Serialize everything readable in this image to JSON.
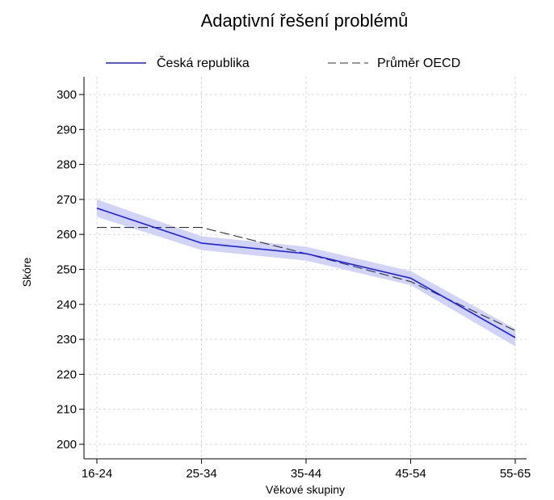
{
  "chart_data": {
    "type": "line",
    "title": "Adaptivní řešení problémů",
    "xlabel": "Věkové skupiny",
    "ylabel": "Skóre",
    "categories": [
      "16-24",
      "25-34",
      "35-44",
      "45-54",
      "55-65"
    ],
    "ylim": [
      200,
      300
    ],
    "yticks": [
      200,
      210,
      220,
      230,
      240,
      250,
      260,
      270,
      280,
      290,
      300
    ],
    "grid": true,
    "legend_position": "top",
    "series": [
      {
        "name": "Česká republika",
        "values": [
          267.5,
          257.5,
          254.5,
          247.5,
          230.5
        ],
        "ci_lower": [
          265.0,
          255.5,
          252.5,
          245.5,
          228.0
        ],
        "ci_upper": [
          270.0,
          259.5,
          256.5,
          249.5,
          233.0
        ],
        "color": "#1a1aff",
        "dash": "solid"
      },
      {
        "name": "Průměr OECD",
        "values": [
          262.0,
          262.0,
          254.5,
          246.5,
          232.5
        ],
        "color": "#333333",
        "dash": "dashed"
      }
    ],
    "band_color": "#c9ccf5"
  }
}
